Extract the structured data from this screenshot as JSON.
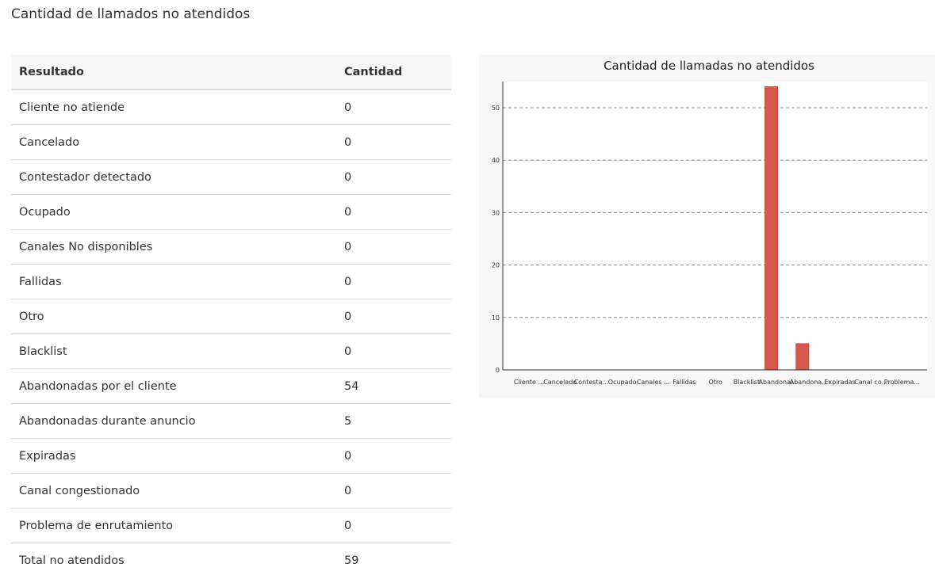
{
  "page": {
    "title": "Cantidad de llamados no atendidos"
  },
  "table": {
    "headers": [
      "Resultado",
      "Cantidad"
    ],
    "rows": [
      [
        "Cliente no atiende",
        "0"
      ],
      [
        "Cancelado",
        "0"
      ],
      [
        "Contestador detectado",
        "0"
      ],
      [
        "Ocupado",
        "0"
      ],
      [
        "Canales No disponibles",
        "0"
      ],
      [
        "Fallidas",
        "0"
      ],
      [
        "Otro",
        "0"
      ],
      [
        "Blacklist",
        "0"
      ],
      [
        "Abandonadas por el cliente",
        "54"
      ],
      [
        "Abandonadas durante anuncio",
        "5"
      ],
      [
        "Expiradas",
        "0"
      ],
      [
        "Canal congestionado",
        "0"
      ],
      [
        "Problema de enrutamiento",
        "0"
      ],
      [
        "Total no atendidos",
        "59"
      ]
    ]
  },
  "chart_data": {
    "type": "bar",
    "title": "Cantidad de llamadas no atendidos",
    "categories": [
      "Cliente ...",
      "Cancelado",
      "Contesta...",
      "Ocupado",
      "Canales ...",
      "Fallidas",
      "Otro",
      "Blacklist",
      "Abandona...",
      "Abandona...",
      "Expiradas",
      "Canal co...",
      "Problema..."
    ],
    "values": [
      0,
      0,
      0,
      0,
      0,
      0,
      0,
      0,
      54,
      5,
      0,
      0,
      0
    ],
    "ylim": [
      0,
      55
    ],
    "yticks": [
      0,
      10,
      20,
      30,
      40,
      50
    ],
    "grid": true,
    "bar_color": "#d9584c",
    "xlabel": "",
    "ylabel": ""
  }
}
